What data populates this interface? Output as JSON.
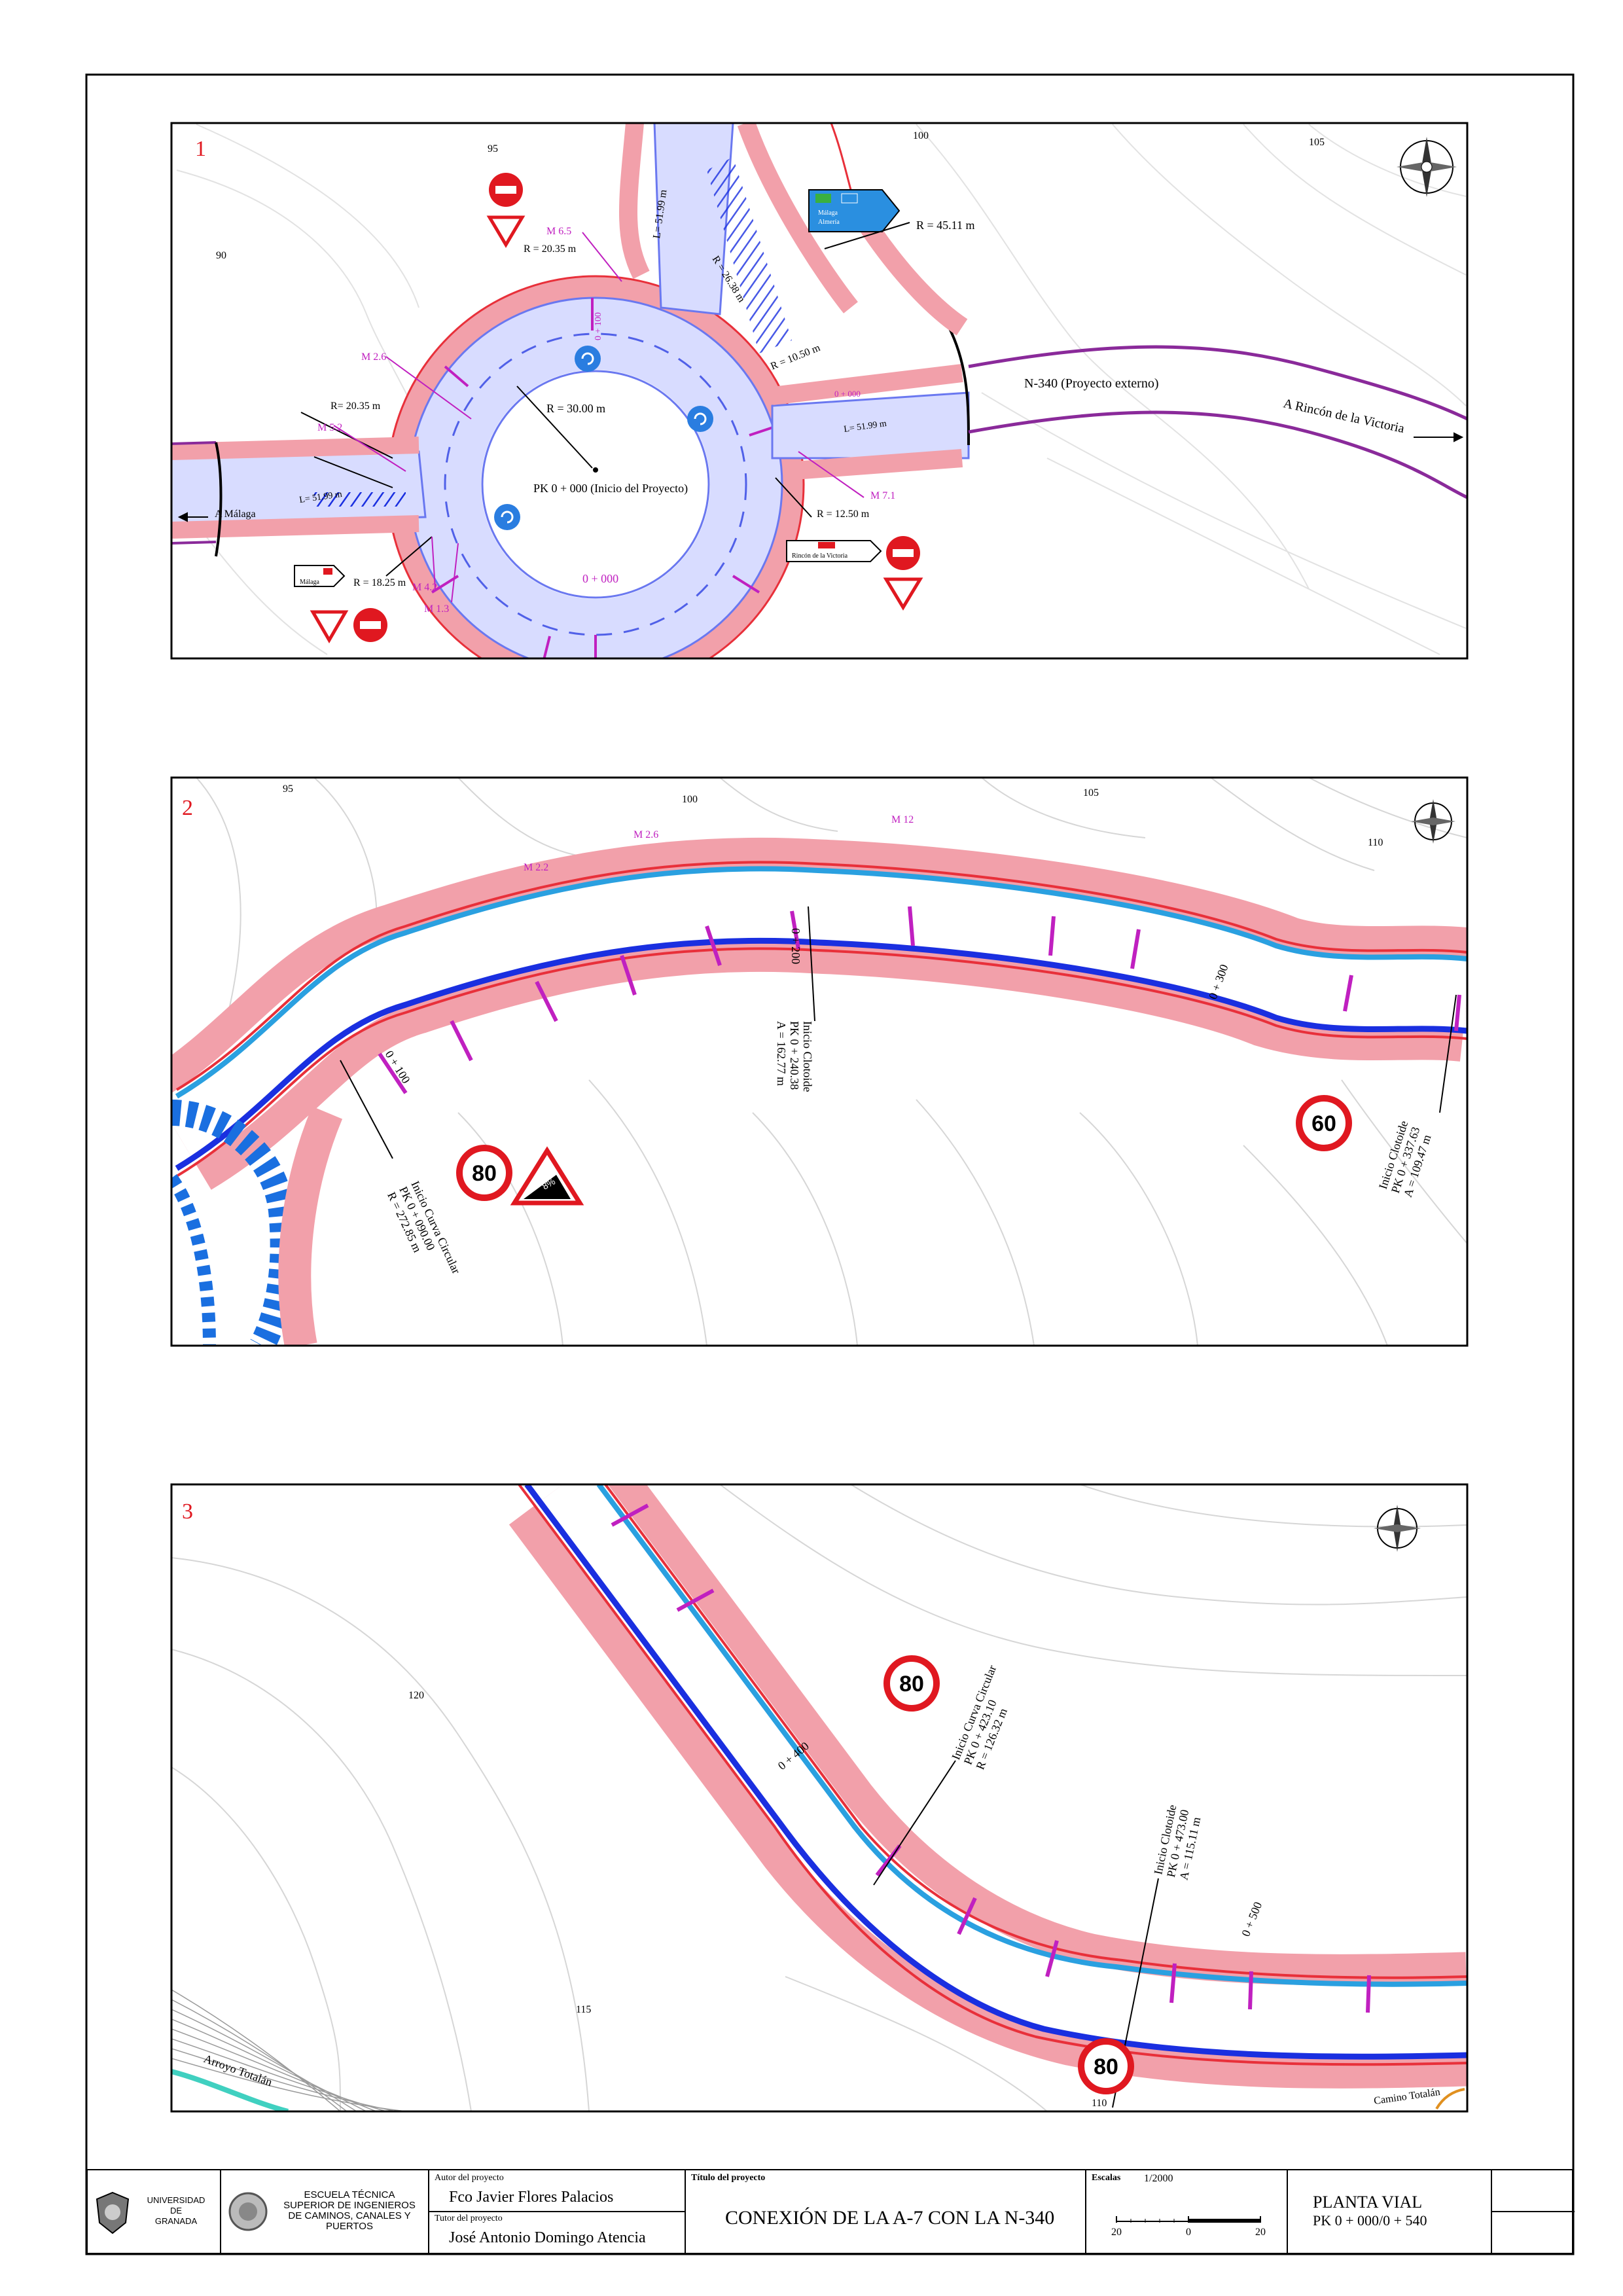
{
  "panel1": {
    "number": "1",
    "contours": [
      "90",
      "95",
      "100",
      "105"
    ],
    "labels": {
      "l_top": "L= 51.99 m",
      "l_right": "L= 51.99 m",
      "l_left": "L= 51.99 m",
      "r_4511": "R = 45.11 m",
      "r_2638": "R = 26.38 m",
      "r_1050": "R = 10.50 m",
      "r_2035_a": "R = 20.35 m",
      "r_2035_b": "R= 20.35 m",
      "r_30": "R = 30.00 m",
      "r_1250": "R = 12.50 m",
      "r_1825": "R = 18.25 m",
      "pk_start": "PK 0 + 000 (Inicio del Proyecto)",
      "ch_0000": "0 + 000",
      "ch_0000_b": "0 + 000",
      "ch_0100": "0 + 100",
      "n340": "N-340 (Proyecto externo)",
      "to_rincon": "A Rincón de la Victoria",
      "to_malaga": "A Málaga"
    },
    "marks": {
      "m65": "M 6.5",
      "m26": "M 2.6",
      "m52": "M 5.2",
      "m71": "M 7.1",
      "m42": "M 4.2",
      "m13": "M 1.3"
    },
    "signs": {
      "sign_blue_a": "Málaga",
      "sign_blue_b": "Almería",
      "sign_malaga": "Málaga",
      "sign_rincon": "Rincón de la Victoria"
    }
  },
  "panel2": {
    "number": "2",
    "contours": [
      "95",
      "100",
      "105",
      "110"
    ],
    "marks": {
      "m22": "M 2.2",
      "m26": "M 2.6",
      "m12": "M 12"
    },
    "chainages": {
      "c100": "0 + 100",
      "c200": "0 + 200",
      "c300": "0 + 300"
    },
    "curve1": [
      "Inicio Curva Circular",
      "PK 0 + 090.00",
      "R = 272.85 m"
    ],
    "curve2": [
      "Inicio Clotoide",
      "PK 0 + 240.38",
      "A = 162.77 m"
    ],
    "curve3": [
      "Inicio Clotoide",
      "PK 0 + 337.63",
      "A = 109.47 m"
    ],
    "speed_a": "80",
    "speed_b": "60",
    "slope": "8%"
  },
  "panel3": {
    "number": "3",
    "contours": [
      "120",
      "115",
      "110"
    ],
    "chainages": {
      "c400": "0 + 400",
      "c500": "0 + 500"
    },
    "curve1": [
      "Inicio Curva Circular",
      "PK 0 + 423.10",
      "R = 126.32 m"
    ],
    "curve2": [
      "Inicio Clotoide",
      "PK 0 + 473.00",
      "A = 115.11 m"
    ],
    "arroyo": "Arroyo Totalán",
    "camino": "Camino Totalán",
    "speed_a": "80",
    "speed_b": "80"
  },
  "titleblock": {
    "university": [
      "UNIVERSIDAD",
      "DE",
      "GRANADA"
    ],
    "school": [
      "ESCUELA TÉCNICA",
      "SUPERIOR DE INGENIEROS",
      "DE CAMINOS, CANALES Y",
      "PUERTOS"
    ],
    "author_label": "Autor del proyecto",
    "author": "Fco Javier Flores Palacios",
    "tutor_label": "Tutor del proyecto",
    "tutor": "José Antonio Domingo Atencia",
    "title_label": "Título del proyecto",
    "title": "CONEXIÓN DE LA A-7 CON LA N-340",
    "scale_label": "Escalas",
    "scale": "1/2000",
    "scale_ticks": [
      "20",
      "0",
      "20"
    ],
    "plan_name": "PLANTA VIAL",
    "plan_range": "PK 0 + 000/0 + 540"
  },
  "colors": {
    "red_edge": "#e8303a",
    "pink_edge": "#f2a0aa",
    "blue_edge": "#1a2fe0",
    "cyan_edge": "#2aa0e0",
    "magenta": "#c020c0",
    "purple_road": "#8a2a9a",
    "contour": "#cfcfcf"
  }
}
